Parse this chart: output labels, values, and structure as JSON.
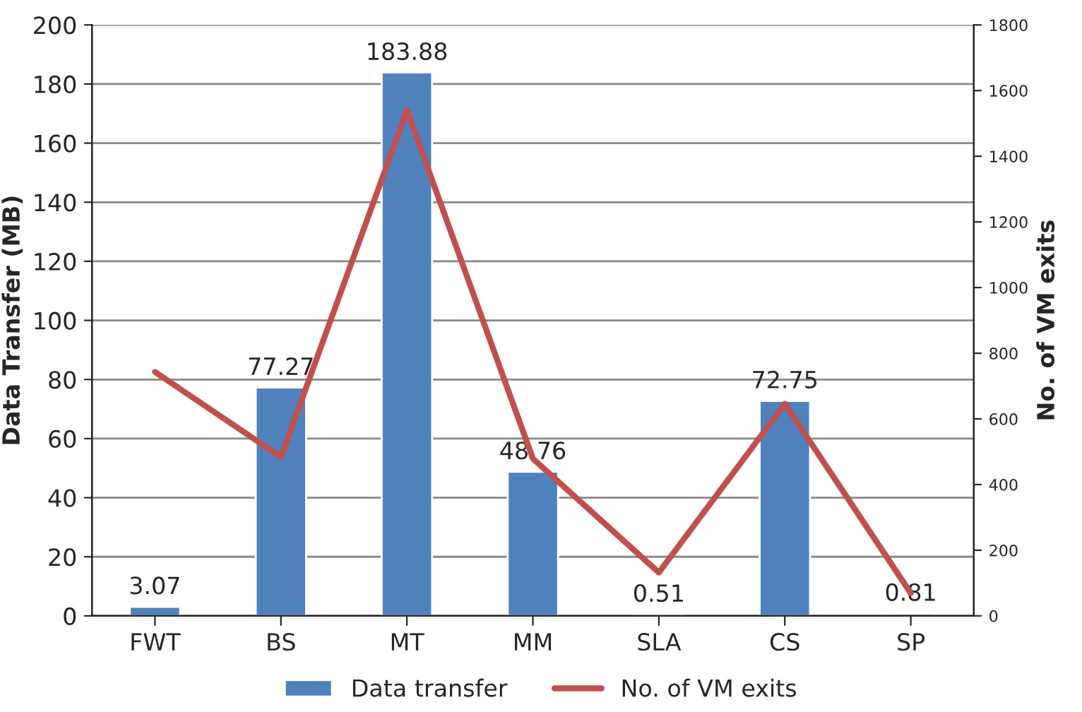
{
  "chart_data": {
    "type": "bar",
    "categories": [
      "FWT",
      "BS",
      "MT",
      "MM",
      "SLA",
      "CS",
      "SP"
    ],
    "series": [
      {
        "name": "Data transfer",
        "color": "#4f81bd",
        "values": [
          3.07,
          77.27,
          183.88,
          48.76,
          0.51,
          72.75,
          0.81
        ],
        "data_labels": true
      },
      {
        "name": "No. of VM exits",
        "type": "line",
        "axis": "y2",
        "color": "#c0504d",
        "values": [
          743,
          484,
          1540,
          479,
          132,
          646,
          69
        ],
        "marker": "none"
      }
    ],
    "ylabel": "Data Transfer (MB)",
    "y2label": "No. of VM exits",
    "ylim": [
      0,
      200
    ],
    "yticks": [
      0,
      20,
      40,
      60,
      80,
      100,
      120,
      140,
      160,
      180,
      200
    ],
    "y2lim": [
      0,
      1800
    ],
    "y2ticks": [
      0,
      200,
      400,
      600,
      800,
      1000,
      1200,
      1400,
      1600,
      1800
    ],
    "grid": "y",
    "legend": "bottom"
  }
}
